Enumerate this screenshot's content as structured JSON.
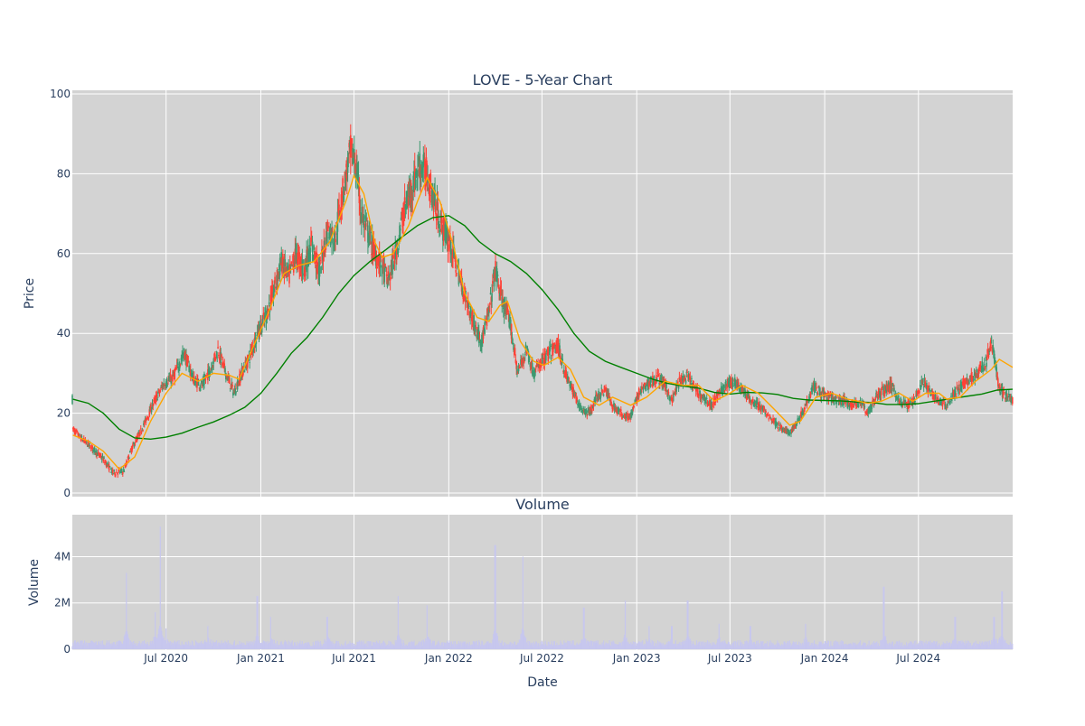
{
  "chart_data": [
    {
      "type": "candlestick",
      "title": "LOVE - 5-Year Chart",
      "xlabel": "",
      "ylabel": "Price",
      "ylim": [
        0,
        100
      ],
      "y_ticks": [
        0,
        20,
        40,
        60,
        80,
        100
      ],
      "grid": true,
      "background": "#d3d3d3",
      "colors": {
        "up": "#3d9970",
        "down": "#ff4136",
        "ma_short": "#ffa500",
        "ma_long": "#008000"
      },
      "x_range": [
        "2020-01-01",
        "2024-12-31"
      ],
      "price_path": [
        [
          "2020-01-02",
          16
        ],
        [
          "2020-01-20",
          13.5
        ],
        [
          "2020-02-10",
          11
        ],
        [
          "2020-03-01",
          8.5
        ],
        [
          "2020-03-20",
          5
        ],
        [
          "2020-04-10",
          5.5
        ],
        [
          "2020-04-25",
          11
        ],
        [
          "2020-05-15",
          16
        ],
        [
          "2020-06-05",
          22
        ],
        [
          "2020-06-25",
          27
        ],
        [
          "2020-07-15",
          29
        ],
        [
          "2020-08-05",
          35
        ],
        [
          "2020-08-25",
          28
        ],
        [
          "2020-09-10",
          27
        ],
        [
          "2020-09-25",
          31
        ],
        [
          "2020-10-10",
          36
        ],
        [
          "2020-10-25",
          30
        ],
        [
          "2020-11-10",
          25
        ],
        [
          "2020-11-25",
          30
        ],
        [
          "2020-12-10",
          34
        ],
        [
          "2020-12-25",
          40
        ],
        [
          "2021-01-10",
          44
        ],
        [
          "2021-01-25",
          50
        ],
        [
          "2021-02-10",
          58
        ],
        [
          "2021-02-25",
          54
        ],
        [
          "2021-03-10",
          60
        ],
        [
          "2021-03-25",
          56
        ],
        [
          "2021-04-10",
          62
        ],
        [
          "2021-04-25",
          55
        ],
        [
          "2021-05-10",
          66
        ],
        [
          "2021-05-25",
          64
        ],
        [
          "2021-06-10",
          76
        ],
        [
          "2021-06-25",
          86
        ],
        [
          "2021-07-05",
          82
        ],
        [
          "2021-07-15",
          70
        ],
        [
          "2021-07-28",
          65
        ],
        [
          "2021-08-10",
          60
        ],
        [
          "2021-08-25",
          57
        ],
        [
          "2021-09-05",
          53
        ],
        [
          "2021-09-20",
          60
        ],
        [
          "2021-10-05",
          70
        ],
        [
          "2021-10-20",
          76
        ],
        [
          "2021-11-05",
          82
        ],
        [
          "2021-11-20",
          80
        ],
        [
          "2021-11-30",
          75
        ],
        [
          "2021-12-15",
          68
        ],
        [
          "2022-01-05",
          62
        ],
        [
          "2022-01-20",
          55
        ],
        [
          "2022-02-05",
          48
        ],
        [
          "2022-02-20",
          42
        ],
        [
          "2022-03-05",
          38
        ],
        [
          "2022-03-20",
          45
        ],
        [
          "2022-04-01",
          56
        ],
        [
          "2022-04-15",
          48
        ],
        [
          "2022-05-01",
          42
        ],
        [
          "2022-05-15",
          30
        ],
        [
          "2022-06-01",
          36
        ],
        [
          "2022-06-15",
          30
        ],
        [
          "2022-07-01",
          33
        ],
        [
          "2022-07-15",
          35
        ],
        [
          "2022-08-01",
          37
        ],
        [
          "2022-08-15",
          30
        ],
        [
          "2022-09-01",
          25
        ],
        [
          "2022-09-15",
          21
        ],
        [
          "2022-10-01",
          20
        ],
        [
          "2022-10-15",
          24
        ],
        [
          "2022-11-01",
          26
        ],
        [
          "2022-11-15",
          22
        ],
        [
          "2022-12-01",
          20
        ],
        [
          "2022-12-20",
          19
        ],
        [
          "2023-01-05",
          25
        ],
        [
          "2023-01-20",
          27
        ],
        [
          "2023-02-10",
          29
        ],
        [
          "2023-02-25",
          27
        ],
        [
          "2023-03-10",
          23
        ],
        [
          "2023-03-25",
          28
        ],
        [
          "2023-04-10",
          29
        ],
        [
          "2023-04-25",
          26
        ],
        [
          "2023-05-10",
          24
        ],
        [
          "2023-05-25",
          22
        ],
        [
          "2023-06-10",
          25
        ],
        [
          "2023-06-25",
          27
        ],
        [
          "2023-07-10",
          28
        ],
        [
          "2023-07-25",
          26
        ],
        [
          "2023-08-10",
          23
        ],
        [
          "2023-08-25",
          22
        ],
        [
          "2023-09-10",
          20
        ],
        [
          "2023-09-25",
          18
        ],
        [
          "2023-10-10",
          16
        ],
        [
          "2023-10-25",
          15
        ],
        [
          "2023-11-10",
          18
        ],
        [
          "2023-11-25",
          22
        ],
        [
          "2023-12-10",
          27
        ],
        [
          "2023-12-25",
          25
        ],
        [
          "2024-01-10",
          24
        ],
        [
          "2024-01-25",
          23
        ],
        [
          "2024-02-10",
          23
        ],
        [
          "2024-02-25",
          22
        ],
        [
          "2024-03-10",
          23
        ],
        [
          "2024-03-25",
          20
        ],
        [
          "2024-04-10",
          24
        ],
        [
          "2024-04-25",
          26
        ],
        [
          "2024-05-10",
          27
        ],
        [
          "2024-05-25",
          23
        ],
        [
          "2024-06-10",
          22
        ],
        [
          "2024-06-25",
          24
        ],
        [
          "2024-07-10",
          28
        ],
        [
          "2024-07-25",
          25
        ],
        [
          "2024-08-10",
          23
        ],
        [
          "2024-08-25",
          22
        ],
        [
          "2024-09-10",
          25
        ],
        [
          "2024-09-25",
          27
        ],
        [
          "2024-10-10",
          29
        ],
        [
          "2024-10-25",
          30
        ],
        [
          "2024-11-10",
          33
        ],
        [
          "2024-11-20",
          38
        ],
        [
          "2024-12-05",
          26
        ],
        [
          "2024-12-20",
          24
        ],
        [
          "2024-12-31",
          23.5
        ]
      ],
      "ma_short": [
        [
          "2020-01-02",
          14.5
        ],
        [
          "2020-02-01",
          13
        ],
        [
          "2020-03-01",
          10.5
        ],
        [
          "2020-04-01",
          6
        ],
        [
          "2020-05-01",
          9
        ],
        [
          "2020-06-01",
          18
        ],
        [
          "2020-07-01",
          25
        ],
        [
          "2020-08-01",
          30
        ],
        [
          "2020-09-01",
          28
        ],
        [
          "2020-10-01",
          30
        ],
        [
          "2020-11-01",
          29.5
        ],
        [
          "2020-11-20",
          28.5
        ],
        [
          "2020-12-15",
          36
        ],
        [
          "2021-01-15",
          45
        ],
        [
          "2021-02-15",
          55
        ],
        [
          "2021-03-15",
          57
        ],
        [
          "2021-04-15",
          58
        ],
        [
          "2021-05-15",
          63
        ],
        [
          "2021-06-15",
          73
        ],
        [
          "2021-07-01",
          79.5
        ],
        [
          "2021-07-20",
          75
        ],
        [
          "2021-08-10",
          63
        ],
        [
          "2021-08-25",
          59
        ],
        [
          "2021-09-15",
          60
        ],
        [
          "2021-10-15",
          67
        ],
        [
          "2021-11-01",
          73
        ],
        [
          "2021-11-20",
          79
        ],
        [
          "2021-12-15",
          73
        ],
        [
          "2022-01-10",
          62
        ],
        [
          "2022-02-01",
          50
        ],
        [
          "2022-02-25",
          44
        ],
        [
          "2022-03-20",
          43
        ],
        [
          "2022-04-10",
          47
        ],
        [
          "2022-04-25",
          48
        ],
        [
          "2022-05-20",
          38
        ],
        [
          "2022-06-15",
          33
        ],
        [
          "2022-07-05",
          32
        ],
        [
          "2022-08-01",
          34
        ],
        [
          "2022-08-25",
          31
        ],
        [
          "2022-09-20",
          24
        ],
        [
          "2022-10-20",
          22
        ],
        [
          "2022-11-15",
          24
        ],
        [
          "2022-12-20",
          22
        ],
        [
          "2023-01-20",
          24
        ],
        [
          "2023-02-25",
          28
        ],
        [
          "2023-04-01",
          27
        ],
        [
          "2023-05-01",
          27
        ],
        [
          "2023-06-01",
          23
        ],
        [
          "2023-07-01",
          25
        ],
        [
          "2023-07-25",
          27
        ],
        [
          "2023-08-25",
          25
        ],
        [
          "2023-09-25",
          21
        ],
        [
          "2023-10-25",
          17
        ],
        [
          "2023-11-15",
          18
        ],
        [
          "2023-12-15",
          24
        ],
        [
          "2024-01-15",
          25
        ],
        [
          "2024-02-15",
          23.5
        ],
        [
          "2024-03-25",
          22.5
        ],
        [
          "2024-04-20",
          23
        ],
        [
          "2024-05-25",
          25
        ],
        [
          "2024-06-20",
          23
        ],
        [
          "2024-07-15",
          25
        ],
        [
          "2024-08-10",
          25
        ],
        [
          "2024-08-25",
          23.5
        ],
        [
          "2024-09-20",
          24
        ],
        [
          "2024-10-20",
          28
        ],
        [
          "2024-11-20",
          31
        ],
        [
          "2024-12-05",
          33.5
        ],
        [
          "2024-12-31",
          31.5
        ]
      ],
      "ma_long": [
        [
          "2020-01-02",
          23.5
        ],
        [
          "2020-02-01",
          22.5
        ],
        [
          "2020-03-01",
          20
        ],
        [
          "2020-04-01",
          16
        ],
        [
          "2020-05-01",
          13.8
        ],
        [
          "2020-06-01",
          13.5
        ],
        [
          "2020-07-01",
          14
        ],
        [
          "2020-08-01",
          15
        ],
        [
          "2020-09-01",
          16.5
        ],
        [
          "2020-10-01",
          17.8
        ],
        [
          "2020-11-01",
          19.5
        ],
        [
          "2020-12-01",
          21.5
        ],
        [
          "2021-01-01",
          25
        ],
        [
          "2021-02-01",
          30
        ],
        [
          "2021-03-01",
          35
        ],
        [
          "2021-04-01",
          39
        ],
        [
          "2021-05-01",
          44
        ],
        [
          "2021-06-01",
          50
        ],
        [
          "2021-07-01",
          54.5
        ],
        [
          "2021-08-01",
          58
        ],
        [
          "2021-09-01",
          61
        ],
        [
          "2021-10-01",
          64
        ],
        [
          "2021-11-01",
          67
        ],
        [
          "2021-12-01",
          69
        ],
        [
          "2022-01-01",
          69.5
        ],
        [
          "2022-02-01",
          67
        ],
        [
          "2022-03-01",
          63
        ],
        [
          "2022-04-01",
          60
        ],
        [
          "2022-05-01",
          58
        ],
        [
          "2022-06-01",
          55
        ],
        [
          "2022-07-01",
          51
        ],
        [
          "2022-08-01",
          46
        ],
        [
          "2022-09-01",
          40
        ],
        [
          "2022-10-01",
          35.5
        ],
        [
          "2022-11-01",
          33
        ],
        [
          "2022-12-01",
          31.5
        ],
        [
          "2023-01-01",
          30
        ],
        [
          "2023-02-01",
          28.5
        ],
        [
          "2023-03-01",
          27.5
        ],
        [
          "2023-04-01",
          26.8
        ],
        [
          "2023-05-01",
          26.3
        ],
        [
          "2023-06-01",
          25.2
        ],
        [
          "2023-07-01",
          24.8
        ],
        [
          "2023-08-01",
          25.2
        ],
        [
          "2023-09-01",
          25.1
        ],
        [
          "2023-10-01",
          24.7
        ],
        [
          "2023-11-01",
          23.7
        ],
        [
          "2023-12-01",
          23.3
        ],
        [
          "2024-01-01",
          23.2
        ],
        [
          "2024-02-01",
          23.1
        ],
        [
          "2024-03-01",
          22.8
        ],
        [
          "2024-04-01",
          22.7
        ],
        [
          "2024-05-01",
          22.2
        ],
        [
          "2024-06-01",
          22.2
        ],
        [
          "2024-07-01",
          22.4
        ],
        [
          "2024-08-01",
          23
        ],
        [
          "2024-09-01",
          23.6
        ],
        [
          "2024-10-01",
          24.2
        ],
        [
          "2024-11-01",
          24.8
        ],
        [
          "2024-12-01",
          25.8
        ],
        [
          "2024-12-31",
          26
        ]
      ]
    },
    {
      "type": "bar",
      "title": "Volume",
      "xlabel": "Date",
      "ylabel": "Volume",
      "ylim": [
        0,
        5500000
      ],
      "y_ticks": [
        0,
        2000000,
        4000000
      ],
      "y_tick_labels": [
        "0",
        "2M",
        "4M"
      ],
      "x_ticks": [
        "2020-07-01",
        "2021-01-01",
        "2021-07-01",
        "2022-01-01",
        "2022-07-01",
        "2023-01-01",
        "2023-07-01",
        "2024-01-01",
        "2024-07-01"
      ],
      "x_tick_labels": [
        "Jul 2020",
        "Jan 2021",
        "Jul 2021",
        "Jan 2022",
        "Jul 2022",
        "Jan 2023",
        "Jul 2023",
        "Jan 2024",
        "Jul 2024"
      ],
      "bar_color": "#c7c7ee",
      "base_volume": 300000,
      "spikes": [
        [
          "2020-04-15",
          3300000
        ],
        [
          "2020-06-10",
          1600000
        ],
        [
          "2020-06-20",
          5300000
        ],
        [
          "2020-07-01",
          900000
        ],
        [
          "2020-09-20",
          1000000
        ],
        [
          "2020-12-25",
          2300000
        ],
        [
          "2021-01-20",
          1400000
        ],
        [
          "2021-05-10",
          1400000
        ],
        [
          "2021-09-25",
          2300000
        ],
        [
          "2021-11-20",
          1900000
        ],
        [
          "2022-04-01",
          4500000
        ],
        [
          "2022-05-25",
          4000000
        ],
        [
          "2022-09-20",
          1800000
        ],
        [
          "2022-12-10",
          2100000
        ],
        [
          "2023-01-25",
          1000000
        ],
        [
          "2023-03-10",
          1000000
        ],
        [
          "2023-04-10",
          2100000
        ],
        [
          "2023-06-10",
          1100000
        ],
        [
          "2023-08-10",
          1000000
        ],
        [
          "2023-11-25",
          1100000
        ],
        [
          "2024-04-25",
          2700000
        ],
        [
          "2024-09-10",
          1400000
        ],
        [
          "2024-11-25",
          1400000
        ],
        [
          "2024-12-10",
          2500000
        ]
      ]
    }
  ]
}
